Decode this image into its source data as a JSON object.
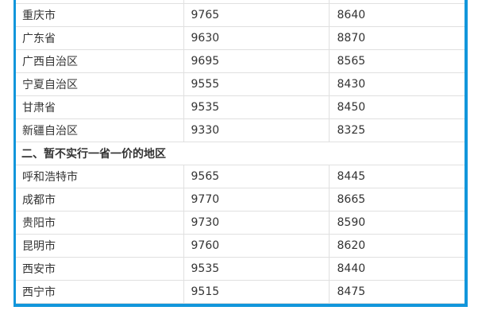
{
  "colors": {
    "table_border_accent": "#1296db",
    "row_divider": "#e0e0e0",
    "text": "#333333"
  },
  "table": {
    "section_2_title": "二、暂不实行一省一价的地区",
    "one_price_rows": [
      {
        "region": "重庆市",
        "price_col_1": "9765",
        "price_col_2": "8640"
      },
      {
        "region": "广东省",
        "price_col_1": "9630",
        "price_col_2": "8870"
      },
      {
        "region": "广西自治区",
        "price_col_1": "9695",
        "price_col_2": "8565"
      },
      {
        "region": "宁夏自治区",
        "price_col_1": "9555",
        "price_col_2": "8430"
      },
      {
        "region": "甘肃省",
        "price_col_1": "9535",
        "price_col_2": "8450"
      },
      {
        "region": "新疆自治区",
        "price_col_1": "9330",
        "price_col_2": "8325"
      }
    ],
    "not_one_price_rows": [
      {
        "region": "呼和浩特市",
        "price_col_1": "9565",
        "price_col_2": "8445"
      },
      {
        "region": "成都市",
        "price_col_1": "9770",
        "price_col_2": "8665"
      },
      {
        "region": "贵阳市",
        "price_col_1": "9730",
        "price_col_2": "8590"
      },
      {
        "region": "昆明市",
        "price_col_1": "9760",
        "price_col_2": "8620"
      },
      {
        "region": "西安市",
        "price_col_1": "9535",
        "price_col_2": "8440"
      },
      {
        "region": "西宁市",
        "price_col_1": "9515",
        "price_col_2": "8475"
      }
    ]
  },
  "chart_data": {
    "type": "table",
    "section_header": "二、暂不实行一省一价的地区",
    "rows_before_section": [
      [
        "重庆市",
        9765,
        8640
      ],
      [
        "广东省",
        9630,
        8870
      ],
      [
        "广西自治区",
        9695,
        8565
      ],
      [
        "宁夏自治区",
        9555,
        8430
      ],
      [
        "甘肃省",
        9535,
        8450
      ],
      [
        "新疆自治区",
        9330,
        8325
      ]
    ],
    "rows_after_section": [
      [
        "呼和浩特市",
        9565,
        8445
      ],
      [
        "成都市",
        9770,
        8665
      ],
      [
        "贵阳市",
        9730,
        8590
      ],
      [
        "昆明市",
        9760,
        8620
      ],
      [
        "西安市",
        9535,
        8440
      ],
      [
        "西宁市",
        9515,
        8475
      ]
    ],
    "layout_hints": {
      "grid": true,
      "border_color": "#1296db",
      "top_row_cut_off": true,
      "section_row_spans_all_columns": true
    }
  }
}
